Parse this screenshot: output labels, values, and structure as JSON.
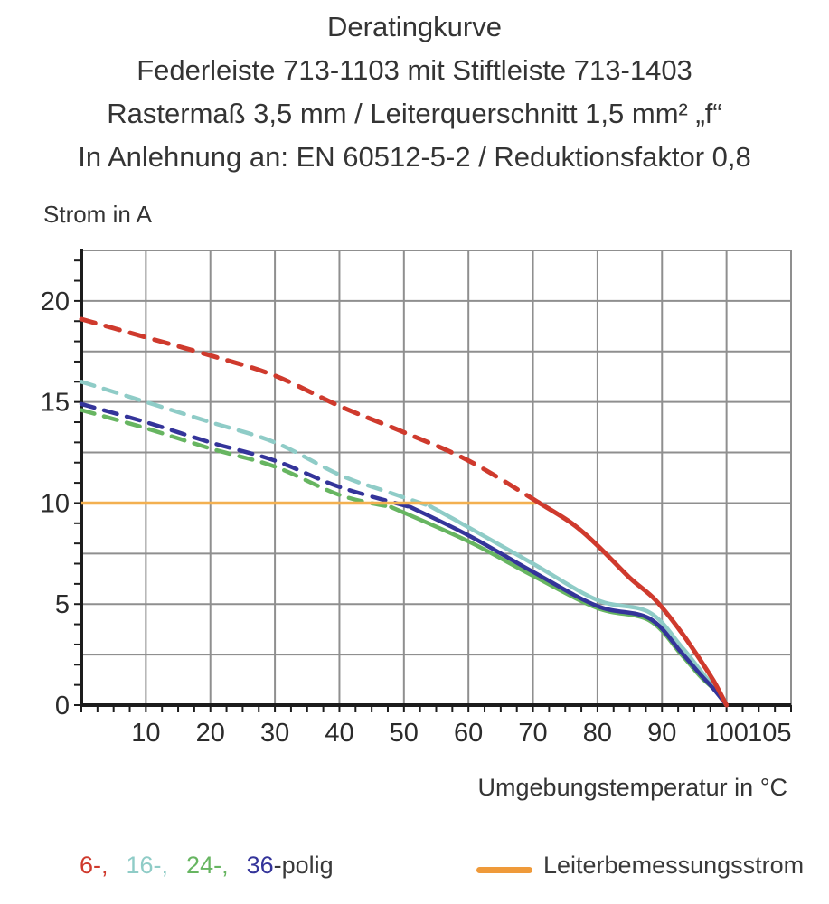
{
  "title": {
    "line1": "Deratingkurve",
    "line2": "Federleiste 713-1103 mit Stiftleiste 713-1403",
    "line3": "Rastermaß 3,5 mm / Leiterquerschnitt 1,5 mm² „f“",
    "line4": "In Anlehnung an: EN 60512-5-2 / Reduktionsfaktor 0,8"
  },
  "axes": {
    "y_title": "Strom in A",
    "x_title": "Umgebungstemperatur in °C"
  },
  "legend": {
    "pole_items": [
      {
        "label": "6-,",
        "color": "#cf3a2d"
      },
      {
        "label": "16-,",
        "color": "#8fccc7"
      },
      {
        "label": "24-,",
        "color": "#67b561"
      },
      {
        "label": "36",
        "color": "#34349a"
      }
    ],
    "suffix": "-polig",
    "rated_current_label": "Leiterbemessungsstrom",
    "rated_current_color": "#ef9a3a"
  },
  "colors": {
    "grid": "#8f8f8f",
    "axis": "#1c1c1c",
    "tick_text": "#2b2b2b",
    "rated_line": "#f3b050"
  },
  "chart_data": {
    "type": "line",
    "title": "Deratingkurve — Federleiste 713-1103 mit Stiftleiste 713-1403",
    "xlabel": "Umgebungstemperatur in °C",
    "ylabel": "Strom in A",
    "xlim": [
      0,
      110
    ],
    "ylim": [
      0,
      22.5
    ],
    "x_tick_labels": [
      10,
      20,
      30,
      40,
      50,
      60,
      70,
      80,
      90,
      100,
      105
    ],
    "x_tick_label_offsets": {
      "105": 12
    },
    "y_tick_labels": [
      0,
      5,
      10,
      15,
      20
    ],
    "grid": {
      "on": true,
      "x_step": 10,
      "y_step": 2.5
    },
    "minor_ticks": {
      "x_step": 2.5,
      "y_step": 1
    },
    "legend_position": "bottom",
    "note": "dash = derated region above rated current, solid = below rated current; x in °C, y in A",
    "series": [
      {
        "name": "24-polig",
        "color": "#67b561",
        "dash": [
          [
            0,
            14.6
          ],
          [
            10,
            13.7
          ],
          [
            20,
            12.7
          ],
          [
            30,
            11.8
          ],
          [
            40,
            10.4
          ],
          [
            48,
            9.8
          ]
        ],
        "solid": [
          [
            48,
            9.8
          ],
          [
            60,
            8.1
          ],
          [
            70,
            6.4
          ],
          [
            80,
            4.8
          ],
          [
            88,
            4.2
          ],
          [
            93,
            2.5
          ],
          [
            96,
            1.4
          ],
          [
            98,
            0.8
          ],
          [
            100,
            0
          ]
        ]
      },
      {
        "name": "16-polig",
        "color": "#8fccc7",
        "dash": [
          [
            0,
            16.0
          ],
          [
            10,
            15.0
          ],
          [
            20,
            14.0
          ],
          [
            30,
            13.0
          ],
          [
            40,
            11.4
          ],
          [
            47,
            10.6
          ],
          [
            54,
            9.85
          ]
        ],
        "solid": [
          [
            54,
            9.85
          ],
          [
            60,
            8.8
          ],
          [
            70,
            7.0
          ],
          [
            80,
            5.2
          ],
          [
            88,
            4.6
          ],
          [
            93,
            2.9
          ],
          [
            96,
            1.7
          ],
          [
            98,
            0.9
          ],
          [
            100,
            0
          ]
        ]
      },
      {
        "name": "36-polig",
        "color": "#34349a",
        "dash": [
          [
            0,
            14.9
          ],
          [
            10,
            14.0
          ],
          [
            20,
            13.0
          ],
          [
            30,
            12.1
          ],
          [
            40,
            10.8
          ],
          [
            51,
            9.8
          ]
        ],
        "solid": [
          [
            51,
            9.8
          ],
          [
            60,
            8.4
          ],
          [
            70,
            6.6
          ],
          [
            80,
            4.9
          ],
          [
            88,
            4.3
          ],
          [
            93,
            2.6
          ],
          [
            96,
            1.5
          ],
          [
            98,
            0.8
          ],
          [
            100,
            0
          ]
        ]
      },
      {
        "name": "6-polig",
        "color": "#cf3a2d",
        "dash": [
          [
            0,
            19.1
          ],
          [
            10,
            18.2
          ],
          [
            20,
            17.3
          ],
          [
            30,
            16.3
          ],
          [
            40,
            14.8
          ],
          [
            50,
            13.5
          ],
          [
            60,
            12.1
          ],
          [
            71,
            10.0
          ]
        ],
        "solid": [
          [
            71,
            10.0
          ],
          [
            76,
            9.0
          ],
          [
            80,
            7.9
          ],
          [
            85,
            6.3
          ],
          [
            89,
            5.2
          ],
          [
            93,
            3.6
          ],
          [
            96,
            2.2
          ],
          [
            98,
            1.2
          ],
          [
            100,
            0
          ]
        ]
      }
    ],
    "rated_line": {
      "name": "Leiterbemessungsstrom",
      "value": 10,
      "x_range": [
        0,
        70.5
      ]
    }
  }
}
